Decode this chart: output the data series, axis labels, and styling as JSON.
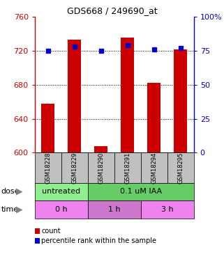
{
  "title": "GDS668 / 249690_at",
  "samples": [
    "GSM18228",
    "GSM18229",
    "GSM18290",
    "GSM18291",
    "GSM18294",
    "GSM18295"
  ],
  "red_values": [
    658,
    733,
    608,
    736,
    682,
    722
  ],
  "blue_values": [
    75,
    78,
    75,
    79,
    76,
    77
  ],
  "ylim_left": [
    600,
    760
  ],
  "ylim_right": [
    0,
    100
  ],
  "yticks_left": [
    600,
    640,
    680,
    720,
    760
  ],
  "ytick_labels_left": [
    "600",
    "640",
    "680",
    "720",
    "760"
  ],
  "yticks_right": [
    0,
    25,
    50,
    75,
    100
  ],
  "ytick_labels_right": [
    "0",
    "25",
    "50",
    "75",
    "100%"
  ],
  "bar_color": "#CC0000",
  "dot_color": "#0000CC",
  "left_tick_color": "#CC0000",
  "right_tick_color": "#0000CC",
  "title_color": "#000000",
  "sample_box_color": "#C0C0C0",
  "dose_green_color": "#90EE90",
  "dose_pink_color": "#66CC66",
  "time_pink_color": "#EE82EE",
  "time_purple_color": "#CC77CC",
  "dose_row": [
    {
      "text": "untreated",
      "span": [
        0,
        2
      ],
      "color": "#90EE90"
    },
    {
      "text": "0.1 uM IAA",
      "span": [
        2,
        6
      ],
      "color": "#66CC66"
    }
  ],
  "time_row": [
    {
      "text": "0 h",
      "span": [
        0,
        2
      ],
      "color": "#EE82EE"
    },
    {
      "text": "1 h",
      "span": [
        2,
        4
      ],
      "color": "#CC77CC"
    },
    {
      "text": "3 h",
      "span": [
        4,
        6
      ],
      "color": "#EE82EE"
    }
  ],
  "legend": [
    {
      "color": "#CC0000",
      "label": "count"
    },
    {
      "color": "#0000CC",
      "label": "percentile rank within the sample"
    }
  ]
}
